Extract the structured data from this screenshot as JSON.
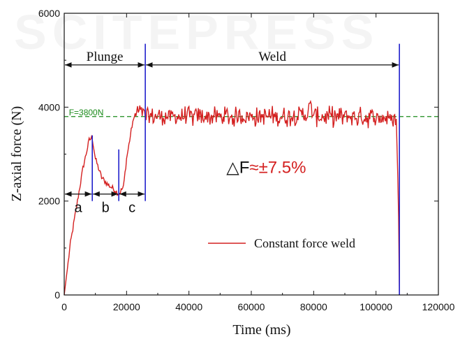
{
  "chart_data": {
    "type": "line",
    "xlabel": "Time (ms)",
    "ylabel": "Z-axial force (N)",
    "xlim": [
      0,
      120000
    ],
    "ylim": [
      0,
      6000
    ],
    "x_ticks": [
      "0",
      "20000",
      "40000",
      "60000",
      "80000",
      "100000",
      "120000"
    ],
    "y_ticks": [
      "0",
      "2000",
      "4000",
      "6000"
    ],
    "grid": false,
    "legend_position": "lower-right",
    "series": [
      {
        "name": "Constant force weld",
        "color": "#d42020",
        "x": [
          0,
          2000,
          4000,
          6000,
          8000,
          9000,
          10000,
          12000,
          14000,
          16000,
          17500,
          19000,
          20000,
          21000,
          22000,
          23000,
          24000,
          25000,
          26000,
          30000,
          40000,
          50000,
          60000,
          70000,
          78000,
          79000,
          80000,
          90000,
          100000,
          106500,
          107200,
          107500
        ],
        "y": [
          0,
          1100,
          1900,
          2700,
          3300,
          3350,
          2900,
          2500,
          2350,
          2250,
          2150,
          2300,
          2900,
          3300,
          3700,
          3850,
          3900,
          3900,
          3800,
          3800,
          3800,
          3800,
          3800,
          3800,
          3850,
          4050,
          3800,
          3800,
          3780,
          3750,
          2000,
          0
        ],
        "noise_amplitude": 250
      }
    ],
    "reference_line": {
      "y": 3800,
      "label": "F=3800N",
      "color": "#1a8a1a"
    },
    "markers": [
      {
        "x": 9000,
        "color": "#2020cc"
      },
      {
        "x": 17500,
        "color": "#2020cc"
      },
      {
        "x": 26000,
        "color": "#2020cc"
      },
      {
        "x": 107500,
        "color": "#2020cc"
      }
    ],
    "phases": [
      {
        "label": "Plunge",
        "x_start": 0,
        "x_end": 26000,
        "y": 4900
      },
      {
        "label": "Weld",
        "x_start": 26000,
        "x_end": 107500,
        "y": 4900
      }
    ],
    "segments": [
      {
        "label": "a",
        "x_start": 0,
        "x_end": 9000,
        "y": 2150
      },
      {
        "label": "b",
        "x_start": 9000,
        "x_end": 17500,
        "y": 2150
      },
      {
        "label": "c",
        "x_start": 17500,
        "x_end": 26000,
        "y": 2150
      }
    ],
    "annotation": {
      "text_prefix": "△F",
      "text_value": "≈±7.5%",
      "x": 52000,
      "y": 2600
    }
  },
  "watermark_text": "SCITEPRESS"
}
